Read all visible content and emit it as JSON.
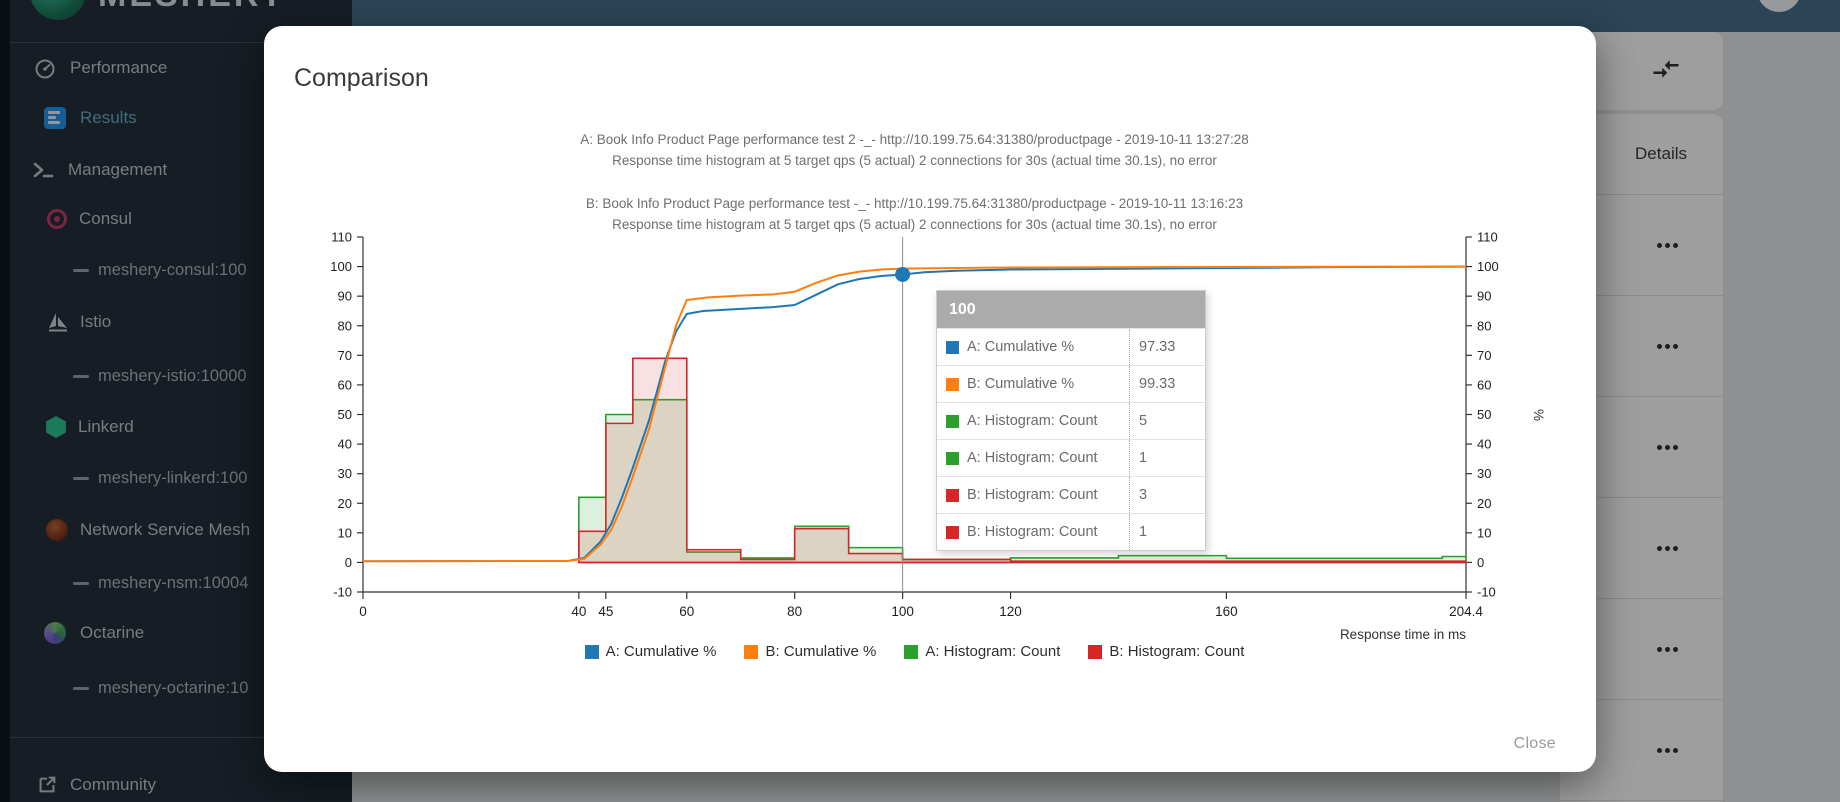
{
  "app": {
    "logo_text": "MESHERY"
  },
  "sidebar": {
    "items": [
      {
        "label": "Performance"
      },
      {
        "label": "Results"
      },
      {
        "label": "Management"
      },
      {
        "label": "Consul"
      },
      {
        "label": "meshery-consul:100"
      },
      {
        "label": "Istio"
      },
      {
        "label": "meshery-istio:10000"
      },
      {
        "label": "Linkerd"
      },
      {
        "label": "meshery-linkerd:100"
      },
      {
        "label": "Network Service Mesh"
      },
      {
        "label": "meshery-nsm:10004"
      },
      {
        "label": "Octarine"
      },
      {
        "label": "meshery-octarine:10"
      },
      {
        "label": "Community"
      }
    ]
  },
  "background_table": {
    "details_header": "Details",
    "row_count": 6
  },
  "modal": {
    "title": "Comparison",
    "close_label": "Close",
    "tooltip": {
      "header": "100",
      "rows": [
        {
          "label": "A: Cumulative %",
          "value": "97.33",
          "color": "#1f77b4"
        },
        {
          "label": "B: Cumulative %",
          "value": "99.33",
          "color": "#ff7f0e"
        },
        {
          "label": "A: Histogram: Count",
          "value": "5",
          "color": "#2ca02c"
        },
        {
          "label": "A: Histogram: Count",
          "value": "1",
          "color": "#2ca02c"
        },
        {
          "label": "B: Histogram: Count",
          "value": "3",
          "color": "#d62728"
        },
        {
          "label": "B: Histogram: Count",
          "value": "1",
          "color": "#d62728"
        }
      ]
    }
  },
  "chart_data": {
    "type": "line+histogram",
    "titles": {
      "a_line1": "A: Book Info Product Page performance test 2 -_- http://10.199.75.64:31380/productpage - 2019-10-11 13:27:28",
      "a_line2": "Response time histogram at 5 target qps (5 actual) 2 connections for 30s (actual time 30.1s), no error",
      "b_line1": "B: Book Info Product Page performance test -_- http://10.199.75.64:31380/productpage - 2019-10-11 13:16:23",
      "b_line2": "Response time histogram at 5 target qps (5 actual) 2 connections for 30s (actual time 30.1s), no error"
    },
    "xlabel": "Response time in ms",
    "right_axis_label": "%",
    "xlim": [
      0,
      204.4
    ],
    "ylim": [
      -10,
      110
    ],
    "x_ticks": [
      0,
      40,
      45,
      60,
      80,
      100,
      120,
      160,
      204.4
    ],
    "y_tick_step": 10,
    "grid": false,
    "legend_position": "bottom",
    "crosshair": {
      "x": 100,
      "dot_value": 97.33,
      "dot_color": "#1f77b4"
    },
    "series": [
      {
        "name": "A: Cumulative %",
        "type": "line",
        "color": "#1f77b4",
        "points": [
          [
            0,
            0.4
          ],
          [
            38,
            0.5
          ],
          [
            41,
            1.5
          ],
          [
            44,
            7
          ],
          [
            46,
            13
          ],
          [
            48,
            22
          ],
          [
            50,
            32
          ],
          [
            53,
            48
          ],
          [
            56,
            68
          ],
          [
            58,
            78
          ],
          [
            60,
            84
          ],
          [
            63,
            85
          ],
          [
            70,
            85.7
          ],
          [
            76,
            86.3
          ],
          [
            80,
            87
          ],
          [
            84,
            90.5
          ],
          [
            88,
            94
          ],
          [
            92,
            95.8
          ],
          [
            96,
            96.8
          ],
          [
            100,
            97.33
          ],
          [
            104,
            98.1
          ],
          [
            110,
            98.6
          ],
          [
            120,
            99
          ],
          [
            135,
            99.2
          ],
          [
            150,
            99.4
          ],
          [
            160,
            99.5
          ],
          [
            180,
            99.8
          ],
          [
            204.4,
            100
          ]
        ]
      },
      {
        "name": "B: Cumulative %",
        "type": "line",
        "color": "#ff7f0e",
        "points": [
          [
            0,
            0.4
          ],
          [
            38,
            0.5
          ],
          [
            41,
            1.2
          ],
          [
            44,
            6
          ],
          [
            46,
            11
          ],
          [
            48,
            19
          ],
          [
            50,
            29
          ],
          [
            53,
            45
          ],
          [
            56,
            66
          ],
          [
            58,
            80
          ],
          [
            60,
            88.7
          ],
          [
            64,
            89.6
          ],
          [
            70,
            90.2
          ],
          [
            76,
            90.6
          ],
          [
            80,
            91.5
          ],
          [
            84,
            94.5
          ],
          [
            88,
            97
          ],
          [
            92,
            98.3
          ],
          [
            96,
            99
          ],
          [
            100,
            99.33
          ],
          [
            108,
            99.5
          ],
          [
            120,
            99.7
          ],
          [
            150,
            99.85
          ],
          [
            204.4,
            100
          ]
        ]
      },
      {
        "name": "A: Histogram: Count",
        "type": "histogram",
        "color": "#2ca02c",
        "fill": "rgba(44,160,44,0.16)",
        "buckets": [
          [
            40,
            45,
            22
          ],
          [
            45,
            50,
            50
          ],
          [
            50,
            60,
            55
          ],
          [
            60,
            70,
            3.5
          ],
          [
            70,
            80,
            1.5
          ],
          [
            80,
            90,
            12.2
          ],
          [
            90,
            100,
            5
          ],
          [
            100,
            120,
            1
          ],
          [
            120,
            140,
            1.5
          ],
          [
            140,
            160,
            2.3
          ],
          [
            160,
            200,
            1.4
          ],
          [
            200,
            204.4,
            2
          ]
        ]
      },
      {
        "name": "B: Histogram: Count",
        "type": "histogram",
        "color": "#d62728",
        "fill": "rgba(214,39,40,0.14)",
        "buckets": [
          [
            40,
            45,
            10.5
          ],
          [
            45,
            50,
            47
          ],
          [
            50,
            60,
            69
          ],
          [
            60,
            70,
            4.3
          ],
          [
            70,
            80,
            1
          ],
          [
            80,
            90,
            11.4
          ],
          [
            90,
            100,
            3
          ],
          [
            100,
            120,
            1
          ],
          [
            120,
            204.4,
            0.4
          ]
        ]
      }
    ]
  }
}
